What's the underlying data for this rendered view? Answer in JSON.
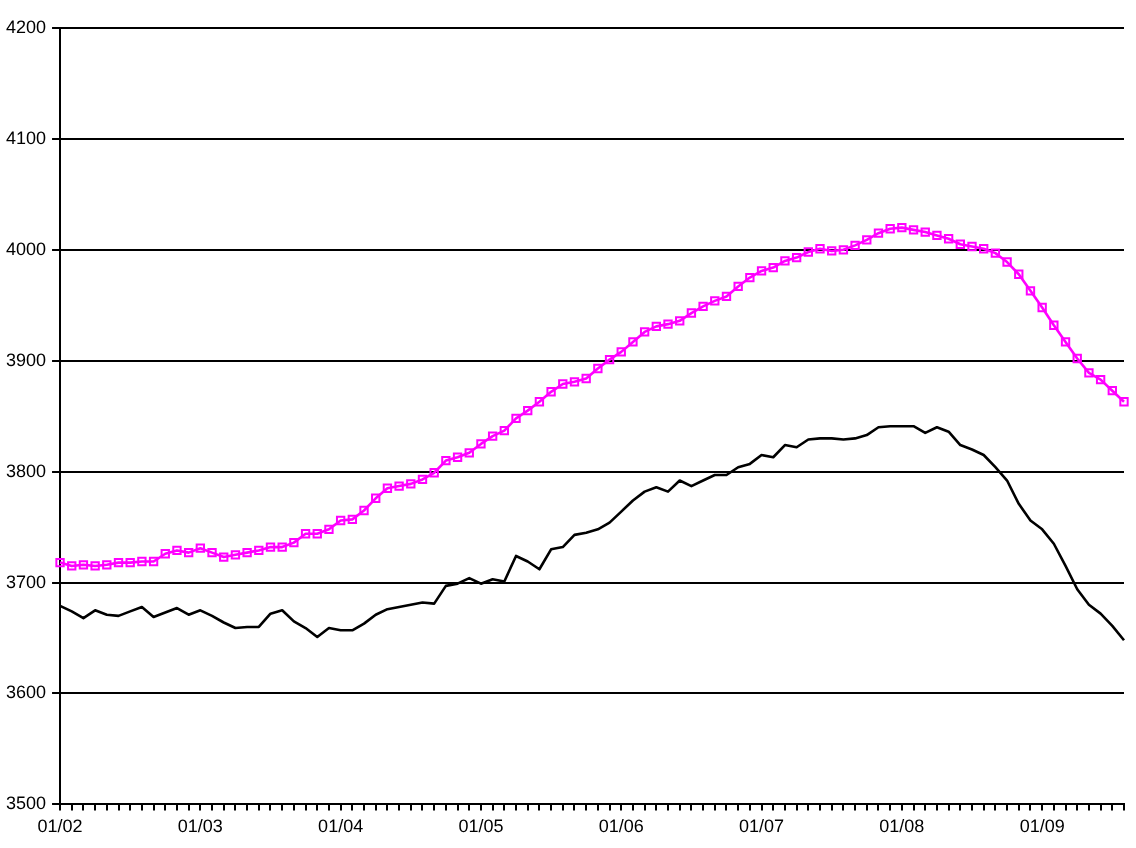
{
  "chart_data": {
    "type": "line",
    "categories": [
      "01/02",
      null,
      null,
      null,
      null,
      null,
      null,
      null,
      null,
      null,
      null,
      null,
      "01/03",
      null,
      null,
      null,
      null,
      null,
      null,
      null,
      null,
      null,
      null,
      null,
      "01/04",
      null,
      null,
      null,
      null,
      null,
      null,
      null,
      null,
      null,
      null,
      null,
      "01/05",
      null,
      null,
      null,
      null,
      null,
      null,
      null,
      null,
      null,
      null,
      null,
      "01/06",
      null,
      null,
      null,
      null,
      null,
      null,
      null,
      null,
      null,
      null,
      null,
      "01/07",
      null,
      null,
      null,
      null,
      null,
      null,
      null,
      null,
      null,
      null,
      null,
      "01/08",
      null,
      null,
      null,
      null,
      null,
      null,
      null,
      null,
      null,
      null,
      null,
      "01/09",
      null,
      null,
      null,
      null,
      null,
      null,
      null
    ],
    "series": [
      {
        "color": "#ff00ff",
        "marker": "square",
        "values": [
          3718,
          3715,
          3716,
          3715,
          3716,
          3718,
          3718,
          3719,
          3719,
          3726,
          3729,
          3727,
          3731,
          3727,
          3723,
          3725,
          3727,
          3729,
          3732,
          3732,
          3736,
          3744,
          3744,
          3748,
          3756,
          3757,
          3765,
          3776,
          3785,
          3787,
          3789,
          3793,
          3799,
          3810,
          3813,
          3817,
          3825,
          3832,
          3837,
          3848,
          3855,
          3863,
          3872,
          3879,
          3881,
          3884,
          3893,
          3901,
          3908,
          3917,
          3926,
          3931,
          3933,
          3936,
          3943,
          3949,
          3954,
          3958,
          3967,
          3975,
          3981,
          3984,
          3990,
          3993,
          3998,
          4001,
          3999,
          4000,
          4004,
          4009,
          4015,
          4019,
          4020,
          4018,
          4016,
          4013,
          4010,
          4005,
          4003,
          4001,
          3997,
          3989,
          3978,
          3963,
          3948,
          3932,
          3917,
          3902,
          3889,
          3883,
          3873,
          3863
        ]
      },
      {
        "color": "#000000",
        "marker": "none",
        "values": [
          3679,
          3674,
          3668,
          3675,
          3671,
          3670,
          3674,
          3678,
          3669,
          3673,
          3677,
          3671,
          3675,
          3670,
          3664,
          3659,
          3660,
          3660,
          3672,
          3675,
          3665,
          3659,
          3651,
          3659,
          3657,
          3657,
          3663,
          3671,
          3676,
          3678,
          3680,
          3682,
          3681,
          3697,
          3699,
          3704,
          3699,
          3703,
          3701,
          3724,
          3719,
          3712,
          3730,
          3732,
          3743,
          3745,
          3748,
          3754,
          3764,
          3774,
          3782,
          3786,
          3782,
          3792,
          3787,
          3792,
          3797,
          3797,
          3804,
          3807,
          3815,
          3813,
          3824,
          3822,
          3829,
          3830,
          3830,
          3829,
          3830,
          3833,
          3840,
          3841,
          3841,
          3841,
          3835,
          3840,
          3836,
          3824,
          3820,
          3815,
          3804,
          3792,
          3771,
          3756,
          3748,
          3735,
          3715,
          3694,
          3680,
          3672,
          3661,
          3648
        ]
      }
    ],
    "ylim": [
      3500,
      4200
    ],
    "yticks": [
      3500,
      3600,
      3700,
      3800,
      3900,
      4000,
      4100,
      4200
    ],
    "grid": "y",
    "legend": false
  }
}
